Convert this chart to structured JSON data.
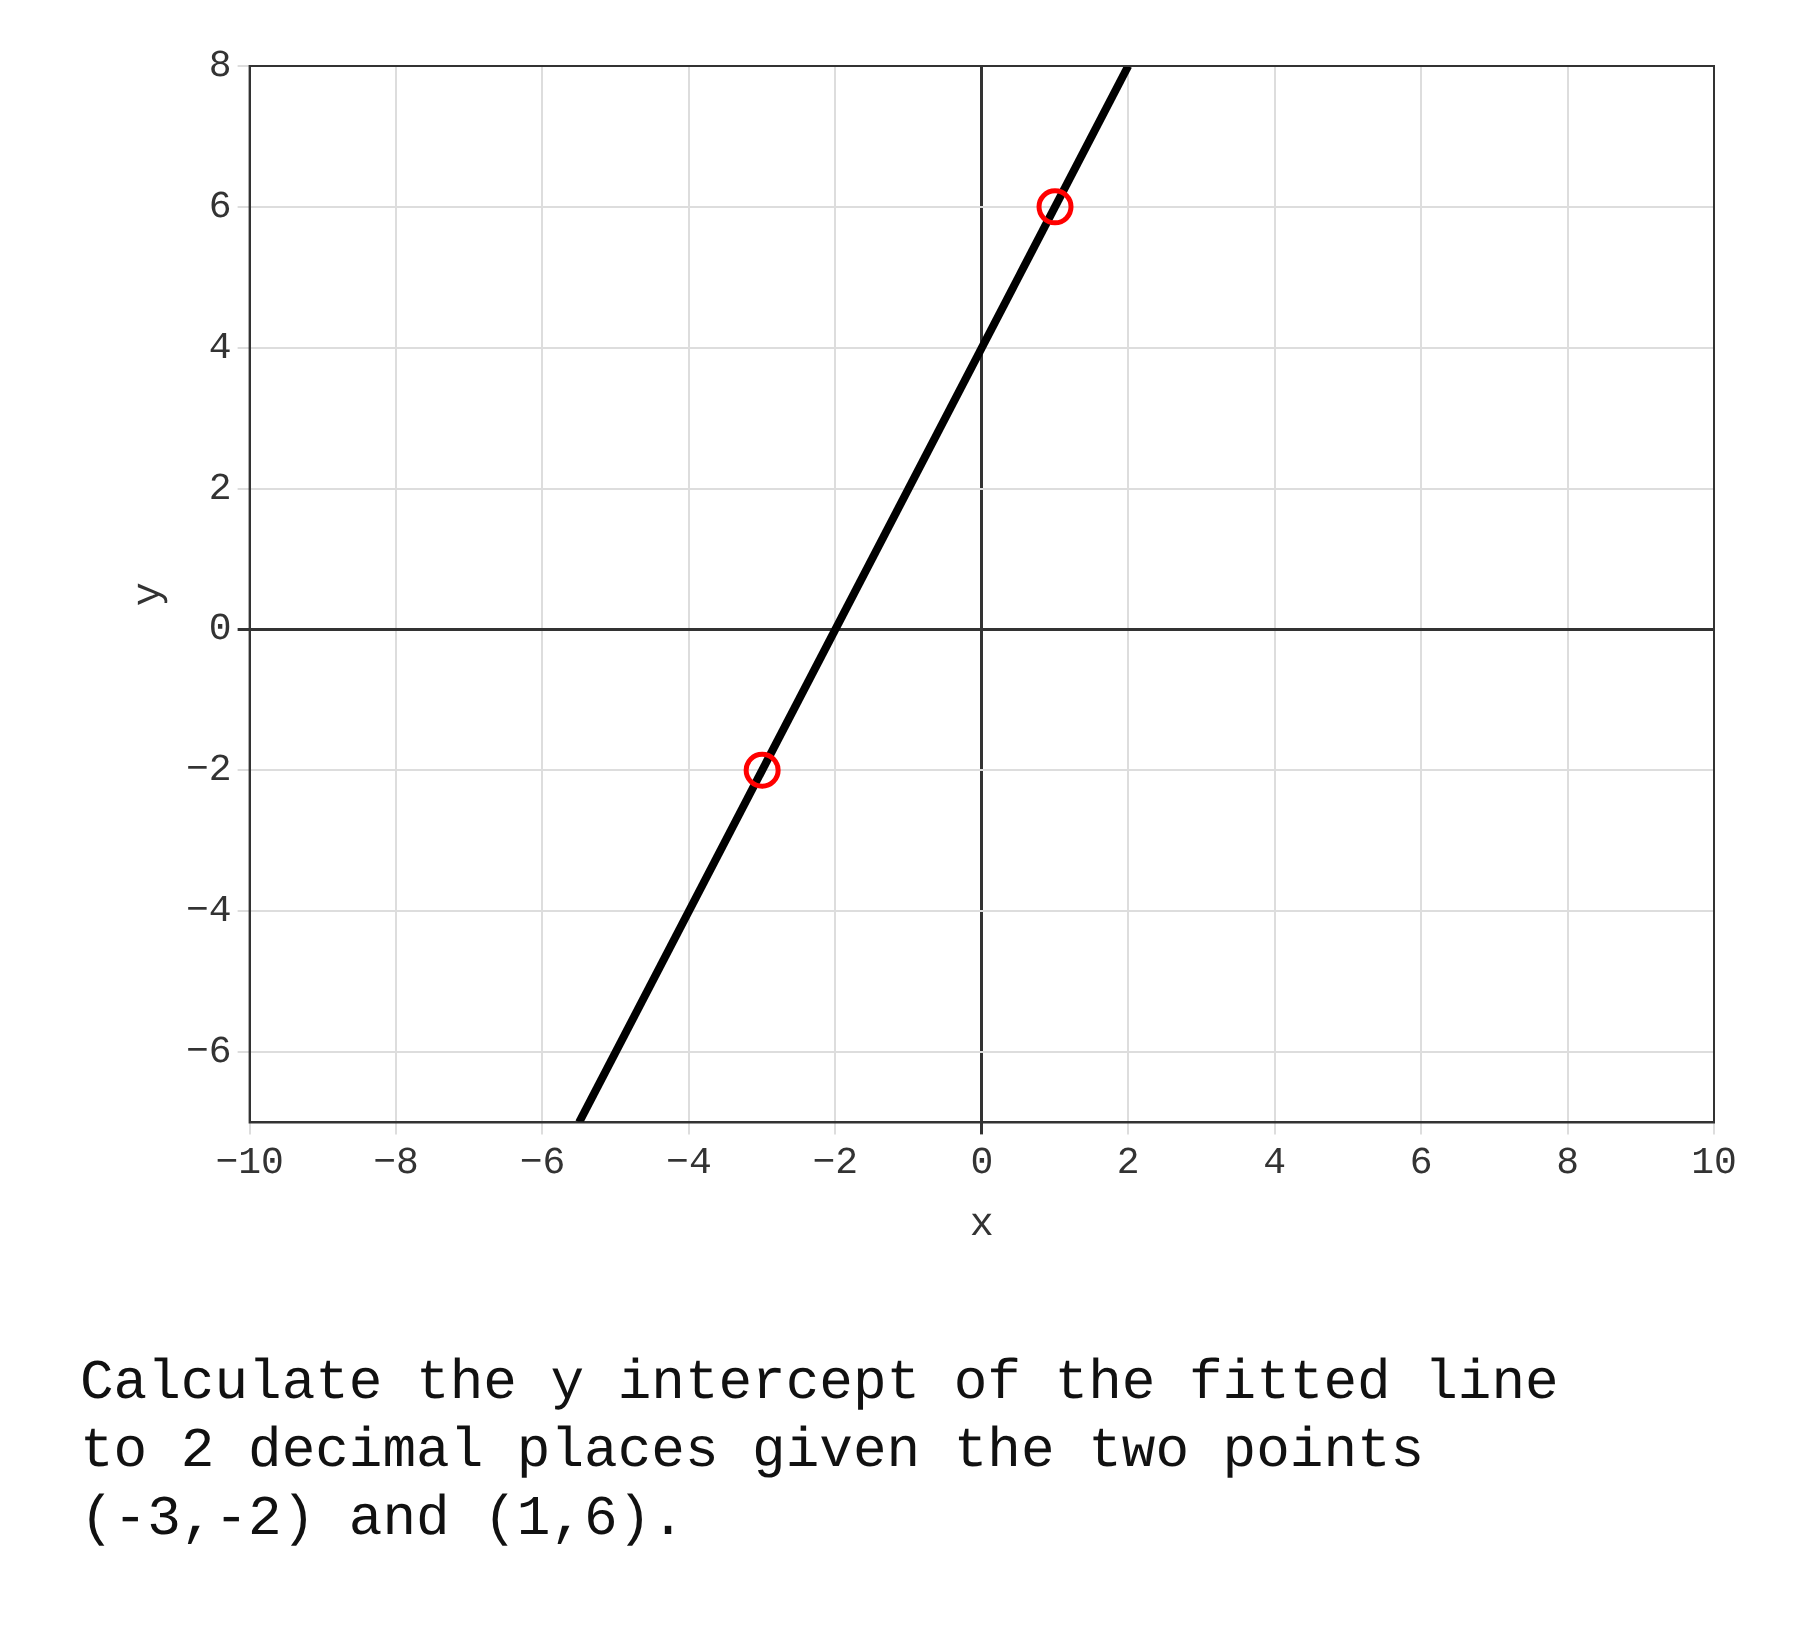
{
  "chart_data": {
    "type": "line",
    "xlabel": "x",
    "ylabel": "y",
    "xlim": [
      -10,
      10
    ],
    "xticks": [
      -10,
      -8,
      -6,
      -4,
      -2,
      0,
      2,
      4,
      6,
      8,
      10
    ],
    "ylim": [
      -7,
      8
    ],
    "yticks": [
      -6,
      -4,
      -2,
      0,
      2,
      4,
      6,
      8
    ],
    "grid": true,
    "legend": false,
    "series": [
      {
        "type": "line",
        "color": "#000000",
        "x": [
          -5.5,
          2
        ],
        "values": [
          -7,
          8
        ],
        "marker": "none"
      },
      {
        "type": "scatter",
        "color": "#ff0000",
        "x": [
          -3,
          1
        ],
        "values": [
          -2,
          6
        ],
        "marker": "circle"
      }
    ],
    "annotations": [
      "Calculate the y intercept of the fitted line to 2 decimal places given the two points (-3,-2) and (1,6)."
    ]
  }
}
